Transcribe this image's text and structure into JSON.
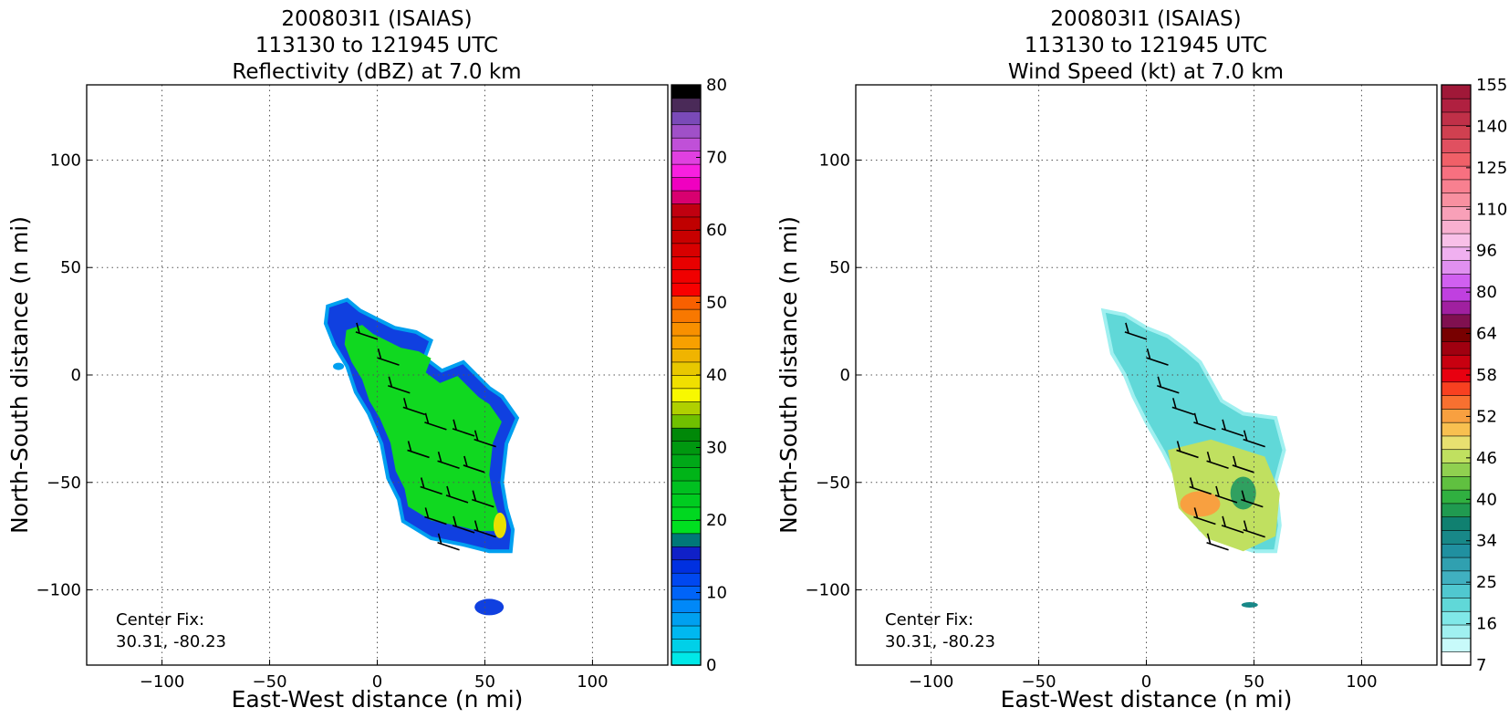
{
  "panels": [
    {
      "title_lines": [
        "200803I1 (ISAIAS)",
        "113130 to 121945 UTC",
        "Reflectivity (dBZ) at 7.0 km"
      ],
      "xlabel": "East-West distance (n mi)",
      "ylabel": "North-South distance (n mi)",
      "center_fix_label": "Center Fix:",
      "center_fix_value": "30.31, -80.23",
      "colorbar_ticks": [
        "0",
        "10",
        "20",
        "30",
        "40",
        "50",
        "60",
        "70",
        "80"
      ],
      "colorbar_colors": [
        "#00e8e8",
        "#00d0e8",
        "#00b8f0",
        "#00a0f0",
        "#0088f8",
        "#0064f8",
        "#0048f0",
        "#0030e0",
        "#1020c8",
        "#007878",
        "#00e020",
        "#00d820",
        "#00cc20",
        "#00c020",
        "#00b418",
        "#00a818",
        "#009810",
        "#008808",
        "#70c000",
        "#b0d000",
        "#f8f800",
        "#f0e000",
        "#e8c800",
        "#f0b400",
        "#f8a000",
        "#f89000",
        "#f87800",
        "#f86000",
        "#f80000",
        "#f00000",
        "#e80000",
        "#d80000",
        "#c80000",
        "#c00000",
        "#c00010",
        "#d80070",
        "#f000c0",
        "#f820e0",
        "#e040e0",
        "#c050d8",
        "#a050c8",
        "#7a4ab8",
        "#4a2a58",
        "#000000"
      ],
      "panel_kind": "reflectivity"
    },
    {
      "title_lines": [
        "200803I1 (ISAIAS)",
        "113130 to 121945 UTC",
        "Wind Speed (kt) at 7.0 km"
      ],
      "xlabel": "East-West distance (n mi)",
      "ylabel": "North-South distance (n mi)",
      "center_fix_label": "Center Fix:",
      "center_fix_value": "30.31, -80.23",
      "colorbar_ticks": [
        "7",
        "16",
        "25",
        "34",
        "40",
        "46",
        "52",
        "58",
        "64",
        "80",
        "96",
        "110",
        "125",
        "140",
        "155"
      ],
      "colorbar_colors": [
        "#ffffff",
        "#c8fafa",
        "#a0f0f0",
        "#80e8e8",
        "#60d8d8",
        "#50c8d0",
        "#40b0c0",
        "#30a0b0",
        "#2090a0",
        "#188888",
        "#108070",
        "#209a50",
        "#30b040",
        "#60c040",
        "#90d050",
        "#c0e060",
        "#e8e070",
        "#f8c050",
        "#f8a040",
        "#f87030",
        "#f84020",
        "#e80010",
        "#c80010",
        "#a00010",
        "#780000",
        "#801050",
        "#a020a0",
        "#c040e0",
        "#d060f0",
        "#e090f0",
        "#f0b0f0",
        "#f8c0e8",
        "#f8b0d0",
        "#f8a0b8",
        "#f890a0",
        "#f88090",
        "#f87080",
        "#f06068",
        "#e05060",
        "#d04050",
        "#c03048",
        "#b02040",
        "#a01838"
      ],
      "panel_kind": "wind"
    }
  ],
  "chart_data": [
    {
      "type": "heatmap",
      "title": "200803I1 (ISAIAS) 113130 to 121945 UTC Reflectivity (dBZ) at 7.0 km",
      "xlabel": "East-West distance (n mi)",
      "ylabel": "North-South distance (n mi)",
      "xlim": [
        -135,
        135
      ],
      "ylim": [
        -135,
        135
      ],
      "xticks": [
        -100,
        -50,
        0,
        50,
        100
      ],
      "yticks": [
        -100,
        -50,
        0,
        50,
        100
      ],
      "grid": true,
      "colorbar": {
        "label": "dBZ",
        "min": 0,
        "max": 80,
        "ticks": [
          0,
          10,
          20,
          30,
          40,
          50,
          60,
          70,
          80
        ]
      },
      "field_outline": [
        [
          -23,
          32
        ],
        [
          -14,
          35
        ],
        [
          -8,
          30
        ],
        [
          0,
          26
        ],
        [
          8,
          22
        ],
        [
          18,
          20
        ],
        [
          25,
          16
        ],
        [
          22,
          8
        ],
        [
          30,
          2
        ],
        [
          40,
          6
        ],
        [
          46,
          0
        ],
        [
          52,
          -6
        ],
        [
          58,
          -10
        ],
        [
          65,
          -20
        ],
        [
          60,
          -32
        ],
        [
          58,
          -50
        ],
        [
          60,
          -62
        ],
        [
          63,
          -72
        ],
        [
          62,
          -82
        ],
        [
          52,
          -82
        ],
        [
          40,
          -79
        ],
        [
          25,
          -76
        ],
        [
          12,
          -68
        ],
        [
          10,
          -58
        ],
        [
          5,
          -48
        ],
        [
          2,
          -32
        ],
        [
          -4,
          -18
        ],
        [
          -10,
          -8
        ],
        [
          -14,
          4
        ],
        [
          -20,
          14
        ],
        [
          -24,
          24
        ]
      ],
      "field_level_dbz": 15,
      "annotation": "Center Fix: 30.31, -80.23"
    },
    {
      "type": "heatmap",
      "title": "200803I1 (ISAIAS) 113130 to 121945 UTC Wind Speed (kt) at 7.0 km",
      "xlabel": "East-West distance (n mi)",
      "ylabel": "North-South distance (n mi)",
      "xlim": [
        -135,
        135
      ],
      "ylim": [
        -135,
        135
      ],
      "xticks": [
        -100,
        -50,
        0,
        50,
        100
      ],
      "yticks": [
        -100,
        -50,
        0,
        50,
        100
      ],
      "grid": true,
      "colorbar": {
        "label": "kt",
        "ticks": [
          7,
          16,
          25,
          34,
          40,
          46,
          52,
          58,
          64,
          80,
          96,
          110,
          125,
          140,
          155
        ]
      },
      "field_outline": [
        [
          -20,
          30
        ],
        [
          -10,
          28
        ],
        [
          0,
          22
        ],
        [
          10,
          18
        ],
        [
          18,
          12
        ],
        [
          25,
          6
        ],
        [
          35,
          -12
        ],
        [
          45,
          -18
        ],
        [
          60,
          -20
        ],
        [
          64,
          -35
        ],
        [
          60,
          -50
        ],
        [
          62,
          -70
        ],
        [
          60,
          -82
        ],
        [
          50,
          -82
        ],
        [
          38,
          -78
        ],
        [
          25,
          -72
        ],
        [
          18,
          -60
        ],
        [
          14,
          -48
        ],
        [
          8,
          -36
        ],
        [
          0,
          -22
        ],
        [
          -6,
          -10
        ],
        [
          -10,
          0
        ],
        [
          -16,
          10
        ]
      ],
      "annotation": "Center Fix: 30.31, -80.23"
    }
  ]
}
